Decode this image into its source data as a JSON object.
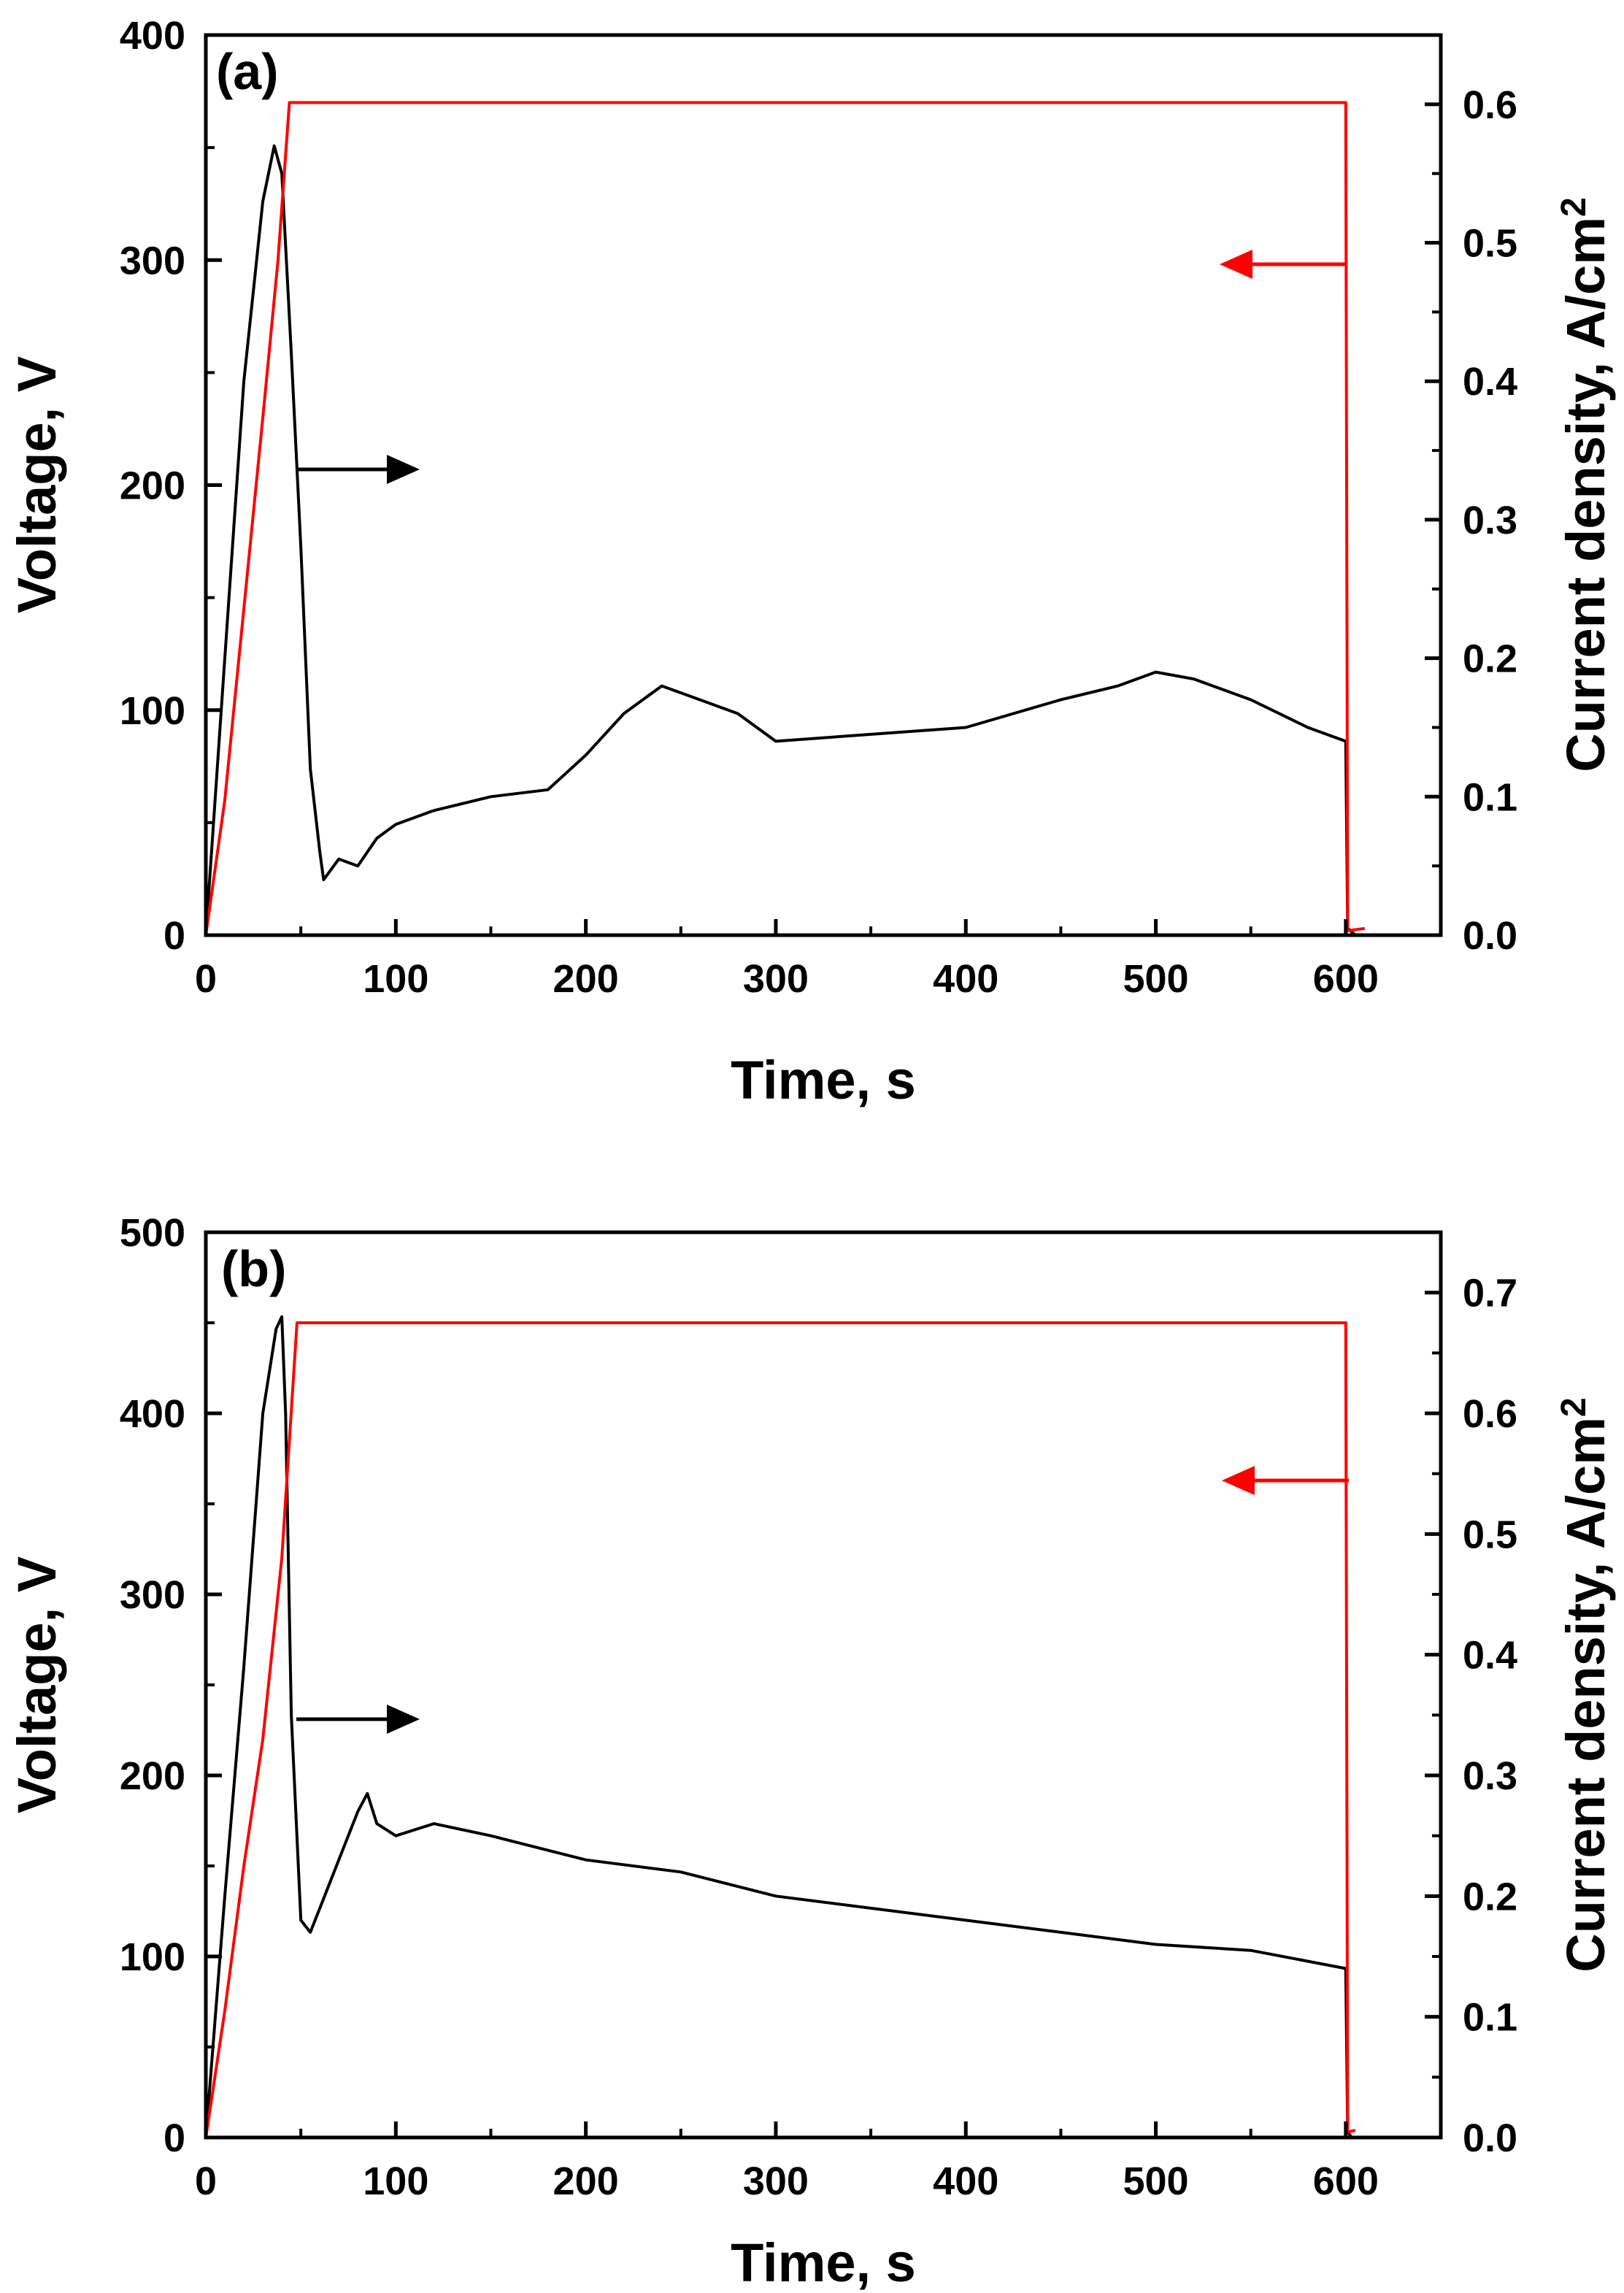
{
  "chart_data": [
    {
      "type": "line",
      "panel_label": "(a)",
      "xlabel": "Time, s",
      "ylabel": "Voltage, V",
      "y2label": "Current density, A/cm",
      "y2label_sup": "2",
      "xlim": [
        0,
        650
      ],
      "ylim": [
        0,
        400
      ],
      "y2lim": [
        0,
        0.65
      ],
      "xticks": [
        "0",
        "100",
        "200",
        "300",
        "400",
        "500",
        "600"
      ],
      "yticks": [
        "0",
        "100",
        "200",
        "300",
        "400"
      ],
      "y2ticks": [
        "0.0",
        "0.1",
        "0.2",
        "0.3",
        "0.4",
        "0.5",
        "0.6"
      ],
      "series": [
        {
          "name": "Voltage",
          "axis": "left",
          "color": "#ff0000",
          "points": [
            [
              0,
              0
            ],
            [
              10,
              60
            ],
            [
              20,
              145
            ],
            [
              30,
              230
            ],
            [
              38,
              300
            ],
            [
              44,
              370
            ],
            [
              600,
              370
            ],
            [
              601,
              2
            ],
            [
              610,
              3
            ]
          ]
        },
        {
          "name": "Current density",
          "axis": "right",
          "color": "#000000",
          "points": [
            [
              0,
              0
            ],
            [
              10,
              0.2
            ],
            [
              20,
              0.4
            ],
            [
              30,
              0.53
            ],
            [
              36,
              0.57
            ],
            [
              40,
              0.55
            ],
            [
              45,
              0.42
            ],
            [
              50,
              0.28
            ],
            [
              55,
              0.12
            ],
            [
              60,
              0.06
            ],
            [
              62,
              0.04
            ],
            [
              70,
              0.055
            ],
            [
              80,
              0.05
            ],
            [
              90,
              0.07
            ],
            [
              100,
              0.08
            ],
            [
              120,
              0.09
            ],
            [
              150,
              0.1
            ],
            [
              180,
              0.105
            ],
            [
              200,
              0.13
            ],
            [
              220,
              0.16
            ],
            [
              240,
              0.18
            ],
            [
              260,
              0.17
            ],
            [
              280,
              0.16
            ],
            [
              300,
              0.14
            ],
            [
              350,
              0.145
            ],
            [
              400,
              0.15
            ],
            [
              450,
              0.17
            ],
            [
              480,
              0.18
            ],
            [
              500,
              0.19
            ],
            [
              520,
              0.185
            ],
            [
              550,
              0.17
            ],
            [
              580,
              0.15
            ],
            [
              600,
              0.14
            ],
            [
              601,
              0.005
            ],
            [
              605,
              0.0
            ]
          ]
        }
      ]
    },
    {
      "type": "line",
      "panel_label": "(b)",
      "xlabel": "Time, s",
      "ylabel": "Voltage, V",
      "y2label": "Current density, A/cm",
      "y2label_sup": "2",
      "xlim": [
        0,
        650
      ],
      "ylim": [
        0,
        500
      ],
      "y2lim": [
        0,
        0.75
      ],
      "xticks": [
        "0",
        "100",
        "200",
        "300",
        "400",
        "500",
        "600"
      ],
      "yticks": [
        "0",
        "100",
        "200",
        "300",
        "400",
        "500"
      ],
      "y2ticks": [
        "0.0",
        "0.1",
        "0.2",
        "0.3",
        "0.4",
        "0.5",
        "0.6",
        "0.7"
      ],
      "series": [
        {
          "name": "Voltage",
          "axis": "left",
          "color": "#ff0000",
          "points": [
            [
              0,
              0
            ],
            [
              10,
              70
            ],
            [
              20,
              150
            ],
            [
              30,
              220
            ],
            [
              40,
              320
            ],
            [
              48,
              450
            ],
            [
              600,
              450
            ],
            [
              601,
              3
            ],
            [
              605,
              4
            ]
          ]
        },
        {
          "name": "Current density",
          "axis": "right",
          "color": "#000000",
          "points": [
            [
              0,
              0
            ],
            [
              10,
              0.2
            ],
            [
              20,
              0.39
            ],
            [
              30,
              0.6
            ],
            [
              37,
              0.67
            ],
            [
              40,
              0.68
            ],
            [
              42,
              0.6
            ],
            [
              45,
              0.35
            ],
            [
              50,
              0.18
            ],
            [
              55,
              0.17
            ],
            [
              60,
              0.19
            ],
            [
              70,
              0.23
            ],
            [
              80,
              0.27
            ],
            [
              85,
              0.285
            ],
            [
              90,
              0.26
            ],
            [
              100,
              0.25
            ],
            [
              120,
              0.26
            ],
            [
              150,
              0.25
            ],
            [
              200,
              0.23
            ],
            [
              250,
              0.22
            ],
            [
              300,
              0.2
            ],
            [
              350,
              0.19
            ],
            [
              400,
              0.18
            ],
            [
              450,
              0.17
            ],
            [
              500,
              0.16
            ],
            [
              550,
              0.155
            ],
            [
              600,
              0.14
            ],
            [
              601,
              0.005
            ],
            [
              603,
              0.0
            ]
          ]
        }
      ]
    }
  ]
}
